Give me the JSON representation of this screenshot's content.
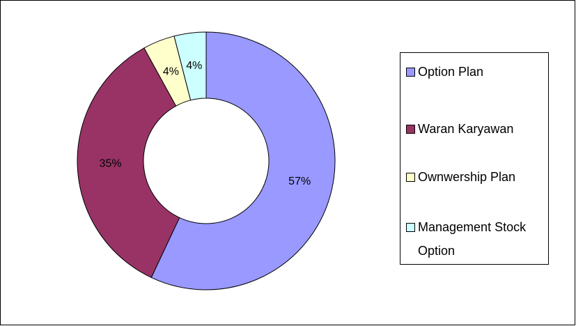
{
  "chart_data": {
    "type": "donut",
    "categories": [
      "Option Plan",
      "Waran Karyawan",
      "Ownwership Plan",
      "Management Stock Option"
    ],
    "values": [
      57,
      35,
      4,
      4
    ],
    "value_labels": [
      "57%",
      "35%",
      "4%",
      "4%"
    ],
    "colors": [
      "#9999ff",
      "#993366",
      "#ffffcc",
      "#ccffff"
    ],
    "legend": "right"
  }
}
